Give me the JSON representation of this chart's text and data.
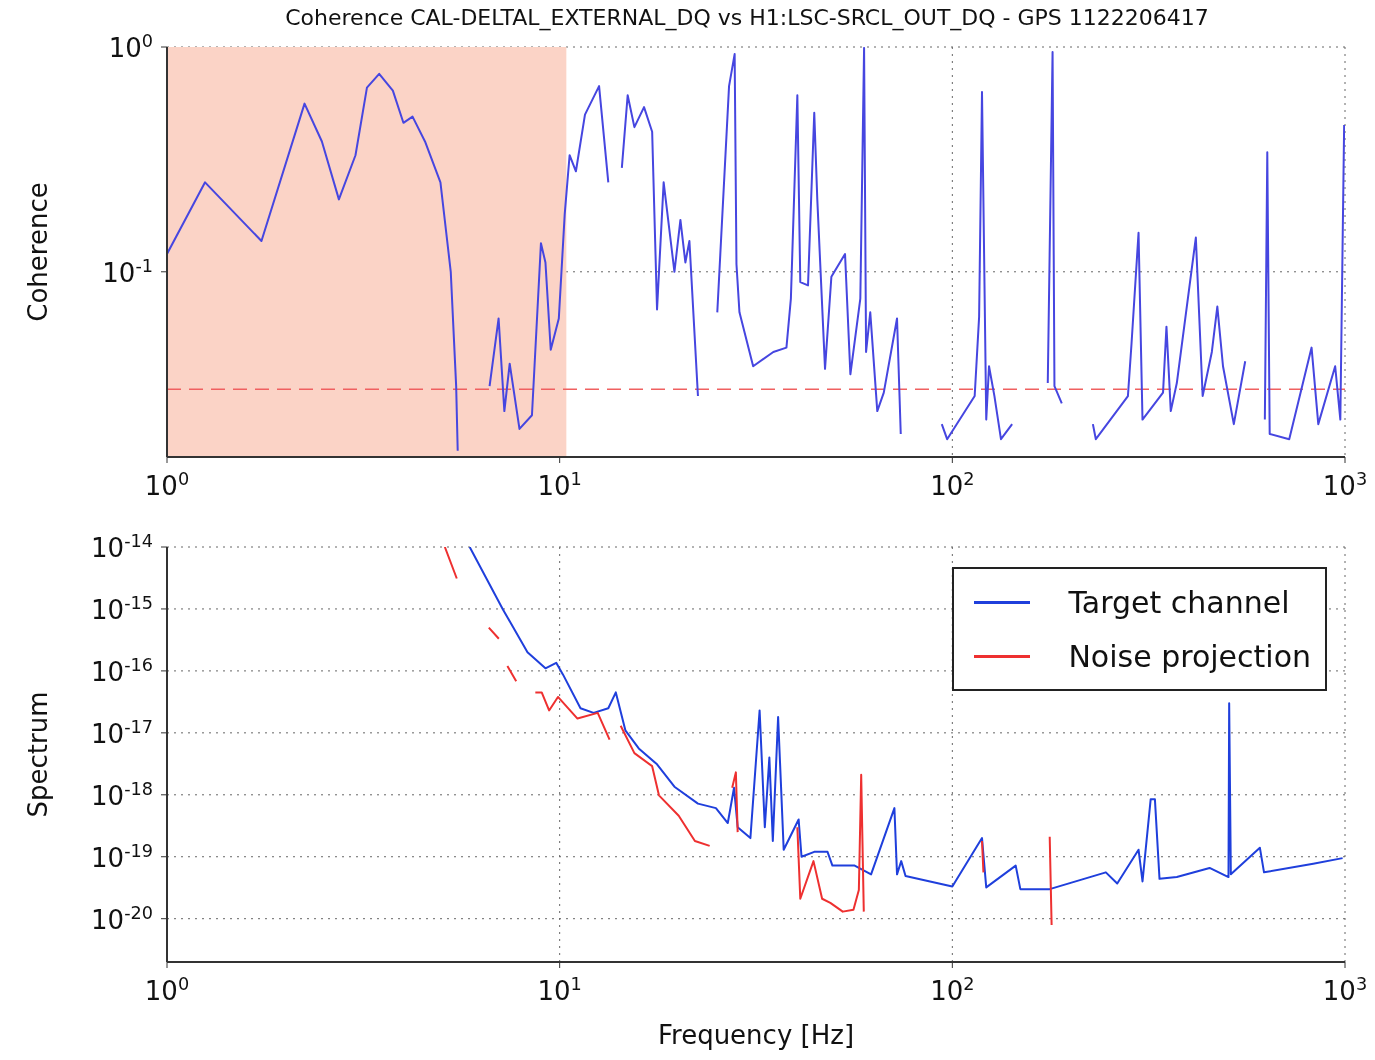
{
  "chart_data": [
    {
      "type": "line",
      "title": "Coherence CAL-DELTAL_EXTERNAL_DQ vs H1:LSC-SRCL_OUT_DQ - GPS 1122206417",
      "ylabel": "Coherence",
      "xlim": [
        1,
        1000
      ],
      "xticks": [
        {
          "value": 1,
          "label": "10$^{0}$"
        },
        {
          "value": 10,
          "label": "10$^{1}$"
        },
        {
          "value": 100,
          "label": "10$^{2}$"
        },
        {
          "value": 1000,
          "label": "10$^{3}$"
        }
      ],
      "ylim": [
        0.015,
        1
      ],
      "yticks": [
        {
          "value": 0.1,
          "label": "10$^{-1}$"
        },
        {
          "value": 1,
          "label": "10$^{0}$"
        }
      ],
      "log": "xy",
      "grid": true,
      "legend": false,
      "bands": [
        {
          "axis": "x",
          "from": 1,
          "to": 10.4,
          "color": "#fbd3c6"
        }
      ],
      "ref_lines": [
        {
          "axis": "y",
          "value": 0.03,
          "color": "#f06060",
          "line_style": "dashed"
        }
      ],
      "series": [
        {
          "color": "#4646e0",
          "x": [
            1,
            1.25,
            1.74,
            2.24,
            2.48,
            2.74,
            3.02,
            3.23,
            3.47,
            3.76,
            4.0,
            4.22,
            4.54,
            4.97,
            5.28,
            5.45,
            5.5,
            6.46,
            6.63,
            6.99,
            7.23,
            7.46,
            7.9,
            8.5,
            8.96,
            9.2,
            9.49,
            9.95,
            10.3,
            10.6,
            11.0,
            11.6,
            12.6,
            13.3,
            13.8,
            14.4,
            14.9,
            15.5,
            16.4,
            17.2,
            17.7,
            18.4,
            19.6,
            20.3,
            20.9,
            21.4,
            22.5,
            23.5,
            25.2,
            27.0,
            27.9,
            28.2,
            28.7,
            31.1,
            35.0,
            37.8,
            38.8,
            40.3,
            41.0,
            42.9,
            44.5,
            45.3,
            47.4,
            49.2,
            53.3,
            55.0,
            58.3,
            59.6,
            60.3,
            61.8,
            64.4,
            66.9,
            72.3,
            73.9,
            75.5,
            94,
            97,
            114,
            117,
            119,
            122,
            124,
            128,
            133,
            142,
            148,
            175,
            180,
            182,
            190,
            193,
            228,
            232,
            280,
            286,
            298,
            305,
            344,
            351,
            360,
            373,
            417,
            434,
            458,
            473,
            489,
            521,
            557,
            570,
            625,
            634,
            643,
            721,
            822,
            855,
            944,
            973,
            995
          ],
          "values": [
            0.12,
            0.25,
            0.137,
            0.56,
            0.38,
            0.21,
            0.33,
            0.66,
            0.76,
            0.64,
            0.46,
            0.49,
            0.38,
            0.25,
            0.1,
            0.031,
            0.016,
            null,
            0.031,
            0.062,
            0.024,
            0.039,
            0.02,
            0.023,
            0.134,
            0.11,
            0.045,
            0.062,
            0.18,
            0.33,
            0.28,
            0.5,
            0.67,
            0.25,
            null,
            0.29,
            0.61,
            0.44,
            0.54,
            0.42,
            0.068,
            0.25,
            0.1,
            0.17,
            0.11,
            0.137,
            0.028,
            null,
            0.066,
            0.67,
            0.93,
            0.108,
            0.066,
            0.038,
            0.044,
            0.046,
            0.076,
            0.61,
            0.09,
            0.087,
            0.51,
            0.21,
            0.037,
            0.095,
            0.12,
            0.035,
            0.076,
            0.99,
            0.044,
            0.066,
            0.024,
            0.029,
            0.062,
            0.019,
            null,
            0.021,
            0.018,
            0.028,
            0.063,
            0.63,
            0.022,
            0.038,
            0.028,
            0.018,
            0.021,
            null,
            0.032,
            0.95,
            0.031,
            0.026,
            null,
            0.021,
            0.018,
            0.028,
            0.048,
            0.149,
            0.022,
            0.029,
            0.057,
            0.024,
            0.032,
            0.142,
            0.028,
            0.044,
            0.07,
            0.038,
            0.021,
            0.04,
            null,
            0.022,
            0.34,
            0.019,
            0.018,
            0.046,
            0.021,
            0.038,
            0.022,
            0.45
          ]
        }
      ]
    },
    {
      "type": "line",
      "xlabel": "Frequency [Hz]",
      "ylabel": "Spectrum",
      "xlim": [
        1,
        1000
      ],
      "xticks": [
        {
          "value": 1,
          "label": "10$^{0}$"
        },
        {
          "value": 10,
          "label": "10$^{1}$"
        },
        {
          "value": 100,
          "label": "10$^{2}$"
        },
        {
          "value": 1000,
          "label": "10$^{3}$"
        }
      ],
      "ylim": [
        2e-21,
        1e-14
      ],
      "yticks": [
        {
          "value": 1e-20,
          "label": "10$^{-20}$"
        },
        {
          "value": 1e-19,
          "label": "10$^{-19}$"
        },
        {
          "value": 1e-18,
          "label": "10$^{-18}$"
        },
        {
          "value": 1e-17,
          "label": "10$^{-17}$"
        },
        {
          "value": 1e-16,
          "label": "10$^{-16}$"
        },
        {
          "value": 1e-15,
          "label": "10$^{-15}$"
        },
        {
          "value": 1e-14,
          "label": "10$^{-14}$"
        }
      ],
      "log": "xy",
      "grid": true,
      "legend": "top right",
      "series": [
        {
          "name": "Target channel",
          "color": "#1f3fdc",
          "x": [
            5.9,
            7.17,
            8.28,
            9.2,
            9.8,
            10.2,
            11.3,
            12.2,
            13.3,
            13.9,
            14.7,
            15.9,
            17.7,
            19.6,
            22.5,
            25.0,
            26.8,
            27.8,
            28.4,
            30.6,
            32.3,
            33.3,
            34.2,
            34.9,
            36.0,
            37.2,
            40.6,
            41.3,
            44.5,
            48.1,
            49.5,
            56.4,
            62.1,
            71.2,
            72.3,
            74.1,
            76,
            100,
            119,
            122,
            145,
            149,
            177,
            246,
            263,
            298,
            305,
            320,
            328,
            337,
            373,
            452,
            505,
            507,
            512,
            607,
            622,
            830,
            986
          ],
          "values": [
            1e-14,
            9.8e-16,
            2e-16,
            1.1e-16,
            1.35e-16,
            8.7e-17,
            2.5e-17,
            2.1e-17,
            2.5e-17,
            4.5e-17,
            1.1e-17,
            5.6e-18,
            3.1e-18,
            1.35e-18,
            7.2e-19,
            6.1e-19,
            3.5e-19,
            1.3e-18,
            3e-19,
            2e-19,
            2.3e-17,
            3e-19,
            4e-18,
            1.8e-19,
            1.8e-17,
            1.3e-19,
            4e-19,
            1e-19,
            1.2e-19,
            1.2e-19,
            7.2e-20,
            7.2e-20,
            5.2e-20,
            6.1e-19,
            5.2e-20,
            8.5e-20,
            4.9e-20,
            3.3e-20,
            2e-19,
            3.2e-20,
            7.2e-20,
            3e-20,
            3e-20,
            5.6e-20,
            3.7e-20,
            1.3e-19,
            4e-20,
            8.5e-19,
            8.5e-19,
            4.4e-20,
            4.7e-20,
            6.6e-20,
            4.7e-20,
            3e-17,
            5.2e-20,
            1.4e-19,
            5.6e-20,
            7.7e-20,
            9.5e-20
          ]
        },
        {
          "name": "Noise projection",
          "color": "#ee3030",
          "x": [
            5.1,
            5.47,
            6.0,
            6.6,
            7.0,
            7.2,
            7.36,
            7.75,
            8.2,
            8.67,
            9.0,
            9.4,
            9.9,
            11.1,
            12.5,
            13.4,
            13.9,
            14.3,
            15.5,
            17.2,
            17.9,
            20.1,
            22.1,
            24.1,
            24.8,
            27.5,
            28.1,
            28.4,
            29.0,
            40.3,
            41.0,
            44.3,
            46.6,
            48.9,
            52.6,
            56.0,
            57.8,
            58.6,
            59.5,
            60.5,
            119,
            120,
            121,
            177,
            179
          ],
          "values": [
            1e-14,
            3.1e-15,
            null,
            5e-16,
            3.3e-16,
            null,
            1.2e-16,
            6.8e-17,
            null,
            4.5e-17,
            4.5e-17,
            2.3e-17,
            3.8e-17,
            1.7e-17,
            2.1e-17,
            7.8e-18,
            null,
            1.3e-17,
            4.7e-18,
            2.9e-18,
            9.8e-19,
            4.6e-19,
            1.8e-19,
            1.5e-19,
            null,
            1.3e-18,
            2.3e-18,
            2.5e-19,
            null,
            3e-19,
            2.1e-20,
            8.5e-20,
            2.1e-20,
            1.8e-20,
            1.3e-20,
            1.4e-20,
            2.9e-20,
            2.1e-18,
            1.3e-20,
            null,
            1.8e-19,
            5.6e-20,
            null,
            2.1e-19,
            7.9e-21
          ]
        }
      ]
    }
  ]
}
